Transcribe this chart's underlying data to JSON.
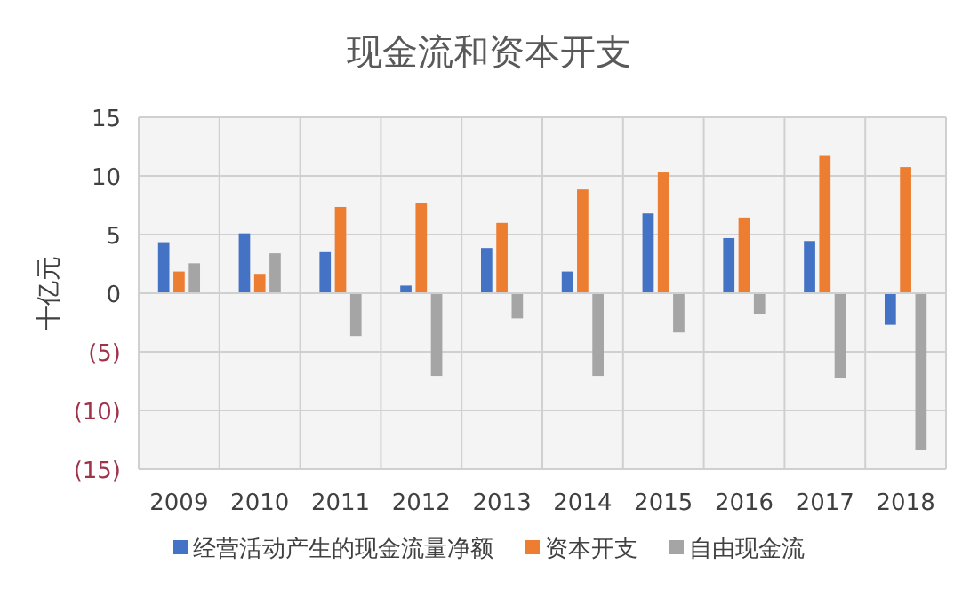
{
  "chart_data": {
    "type": "bar",
    "title": "现金流和资本开支",
    "ylabel": "十亿元",
    "categories": [
      "2009",
      "2010",
      "2011",
      "2012",
      "2013",
      "2014",
      "2015",
      "2016",
      "2017",
      "2018"
    ],
    "series": [
      {
        "name": "经营活动产生的现金流量净额",
        "color": "#4472c4",
        "values": [
          4.35,
          5.1,
          3.5,
          0.65,
          3.85,
          1.85,
          6.8,
          4.7,
          4.45,
          -2.7
        ]
      },
      {
        "name": "资本开支",
        "color": "#ed7d31",
        "values": [
          1.85,
          1.65,
          7.35,
          7.7,
          6.0,
          8.85,
          10.3,
          6.45,
          11.7,
          10.75
        ]
      },
      {
        "name": "自由现金流",
        "color": "#a5a5a5",
        "values": [
          2.55,
          3.4,
          -3.65,
          -7.05,
          -2.15,
          -7.05,
          -3.35,
          -1.75,
          -7.2,
          -13.35
        ]
      }
    ],
    "ylim": [
      -15,
      15
    ],
    "yticks": [
      {
        "value": -15,
        "label": "(15)"
      },
      {
        "value": -10,
        "label": "(10)"
      },
      {
        "value": -5,
        "label": "(5)"
      },
      0,
      5,
      10,
      15
    ],
    "grid": true,
    "legend": "bottom"
  }
}
